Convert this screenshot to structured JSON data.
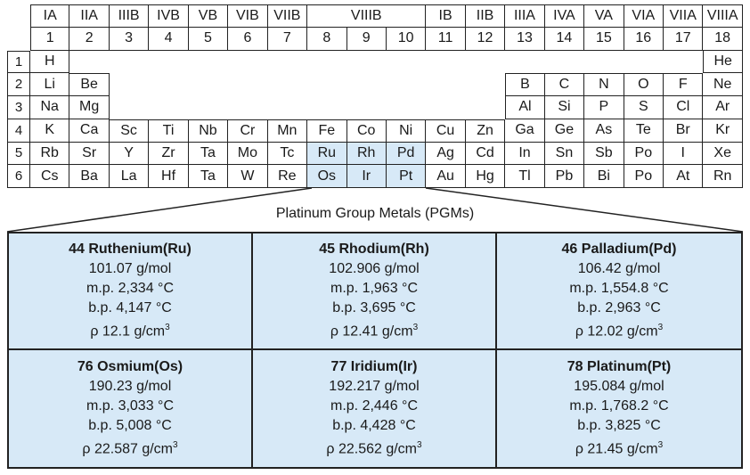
{
  "periodic_table": {
    "group_roman": [
      "IA",
      "IIA",
      "IIIB",
      "IVB",
      "VB",
      "VIB",
      "VIIB",
      "VIIIB",
      "IB",
      "IIB",
      "IIIA",
      "IVA",
      "VA",
      "VIA",
      "VIIA",
      "VIIIA"
    ],
    "group_numbers": [
      "1",
      "2",
      "3",
      "4",
      "5",
      "6",
      "7",
      "8",
      "9",
      "10",
      "11",
      "12",
      "13",
      "14",
      "15",
      "16",
      "17",
      "18"
    ],
    "period_numbers": [
      "1",
      "2",
      "3",
      "4",
      "5",
      "6"
    ],
    "periods": [
      [
        "H",
        "",
        "",
        "",
        "",
        "",
        "",
        "",
        "",
        "",
        "",
        "",
        "",
        "",
        "",
        "",
        "",
        "He"
      ],
      [
        "Li",
        "Be",
        "",
        "",
        "",
        "",
        "",
        "",
        "",
        "",
        "",
        "",
        "B",
        "C",
        "N",
        "O",
        "F",
        "Ne"
      ],
      [
        "Na",
        "Mg",
        "",
        "",
        "",
        "",
        "",
        "",
        "",
        "",
        "",
        "",
        "Al",
        "Si",
        "P",
        "S",
        "Cl",
        "Ar"
      ],
      [
        "K",
        "Ca",
        "Sc",
        "Ti",
        "Nb",
        "Cr",
        "Mn",
        "Fe",
        "Co",
        "Ni",
        "Cu",
        "Zn",
        "Ga",
        "Ge",
        "As",
        "Te",
        "Br",
        "Kr"
      ],
      [
        "Rb",
        "Sr",
        "Y",
        "Zr",
        "Ta",
        "Mo",
        "Tc",
        "Ru",
        "Rh",
        "Pd",
        "Ag",
        "Cd",
        "In",
        "Sn",
        "Sb",
        "Po",
        "I",
        "Xe"
      ],
      [
        "Cs",
        "Ba",
        "La",
        "Hf",
        "Ta",
        "W",
        "Re",
        "Os",
        "Ir",
        "Pt",
        "Au",
        "Hg",
        "Tl",
        "Pb",
        "Bi",
        "Po",
        "At",
        "Rn"
      ]
    ],
    "highlighted": [
      "Ru",
      "Rh",
      "Pd",
      "Os",
      "Ir",
      "Pt"
    ],
    "highlight_color": "#d7e9f7"
  },
  "pgm": {
    "title": "Platinum Group Metals (PGMs)",
    "density_unit_base": "g/cm",
    "density_unit_exp": "3",
    "cards": [
      {
        "name": "44 Ruthenium(Ru)",
        "mass": "101.07 g/mol",
        "mp": "m.p. 2,334 °C",
        "bp": "b.p. 4,147 °C",
        "density": "ρ  12.1 g/cm"
      },
      {
        "name": "45 Rhodium(Rh)",
        "mass": "102.906 g/mol",
        "mp": "m.p. 1,963 °C",
        "bp": "b.p. 3,695 °C",
        "density": "ρ  12.41 g/cm"
      },
      {
        "name": "46 Palladium(Pd)",
        "mass": "106.42 g/mol",
        "mp": "m.p. 1,554.8 °C",
        "bp": "b.p. 2,963 °C",
        "density": "ρ  12.02 g/cm"
      },
      {
        "name": "76 Osmium(Os)",
        "mass": "190.23 g/mol",
        "mp": "m.p. 3,033 °C",
        "bp": "b.p. 5,008 °C",
        "density": "ρ  22.587 g/cm"
      },
      {
        "name": "77 Iridium(Ir)",
        "mass": "192.217 g/mol",
        "mp": "m.p. 2,446 °C",
        "bp": "b.p. 4,428 °C",
        "density": "ρ  22.562 g/cm"
      },
      {
        "name": "78 Platinum(Pt)",
        "mass": "195.084 g/mol",
        "mp": "m.p. 1,768.2 °C",
        "bp": "b.p. 3,825 °C",
        "density": "ρ  21.45 g/cm"
      }
    ]
  }
}
